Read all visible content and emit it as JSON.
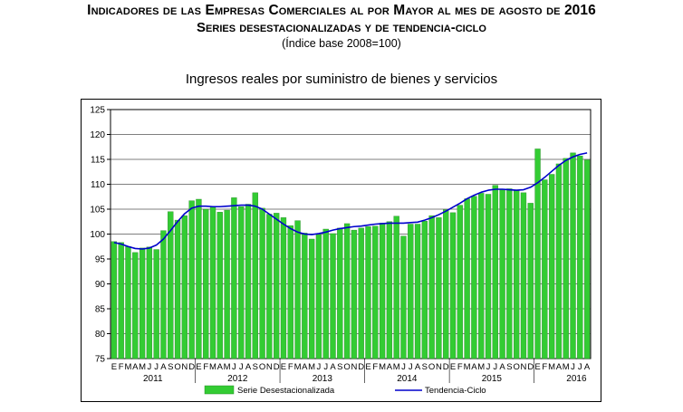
{
  "header": {
    "title": "Indicadores de las Empresas Comerciales al por Mayor al mes de agosto de 2016",
    "subtitle": "Series desestacionalizadas y de tendencia-ciclo",
    "note": "(Índice base 2008=100)"
  },
  "chart_data": {
    "type": "bar",
    "title": "Ingresos reales por suministro de bienes y servicios",
    "ylim": [
      75,
      125
    ],
    "yticks": [
      "75",
      "80",
      "85",
      "90",
      "95",
      "100",
      "105",
      "110",
      "115",
      "120",
      "125"
    ],
    "month_labels": [
      "E",
      "F",
      "M",
      "A",
      "M",
      "J",
      "J",
      "A",
      "S",
      "O",
      "N",
      "D",
      "E",
      "F",
      "M",
      "A",
      "M",
      "J",
      "J",
      "A",
      "S",
      "O",
      "N",
      "D",
      "E",
      "F",
      "M",
      "A",
      "M",
      "J",
      "J",
      "A",
      "S",
      "O",
      "N",
      "D",
      "E",
      "F",
      "M",
      "A",
      "M",
      "J",
      "J",
      "A",
      "S",
      "O",
      "N",
      "D",
      "E",
      "F",
      "M",
      "A",
      "M",
      "J",
      "J",
      "A",
      "S",
      "O",
      "N",
      "D",
      "E",
      "F",
      "M",
      "A",
      "M",
      "J",
      "J",
      "A"
    ],
    "years": [
      {
        "label": "2011",
        "start": 0,
        "months": 12
      },
      {
        "label": "2012",
        "start": 12,
        "months": 12
      },
      {
        "label": "2013",
        "start": 24,
        "months": 12
      },
      {
        "label": "2014",
        "start": 36,
        "months": 12
      },
      {
        "label": "2015",
        "start": 48,
        "months": 12
      },
      {
        "label": "2016",
        "start": 60,
        "months": 8
      }
    ],
    "grid": true,
    "legend_position": "bottom",
    "series": [
      {
        "name": "Serie Desestacionalizada",
        "kind": "bar",
        "color": "#33cc33",
        "values": [
          98.5,
          98.3,
          97.5,
          96.3,
          97.2,
          97.4,
          96.9,
          100.7,
          104.5,
          102.8,
          103.7,
          106.7,
          107.0,
          105.0,
          105.5,
          104.4,
          104.8,
          107.3,
          105.5,
          106.0,
          108.3,
          105.2,
          104.0,
          104.2,
          103.3,
          101.7,
          102.7,
          100.2,
          99.0,
          99.9,
          101.0,
          100.1,
          101.2,
          102.1,
          100.8,
          101.2,
          101.5,
          101.6,
          102.2,
          102.5,
          103.6,
          99.6,
          102.0,
          102.0,
          102.6,
          103.7,
          103.3,
          104.9,
          104.3,
          105.8,
          107.1,
          107.6,
          108.2,
          108.0,
          109.8,
          108.9,
          109.1,
          108.7,
          108.3,
          106.2,
          117.1,
          110.9,
          112.0,
          114.1,
          115.2,
          116.3,
          115.7,
          114.9
        ]
      },
      {
        "name": "Tendencia-Ciclo",
        "kind": "line",
        "color": "#0000cc",
        "values": [
          98.3,
          98.0,
          97.5,
          97.1,
          97.0,
          97.2,
          97.8,
          99.0,
          100.7,
          102.5,
          104.1,
          105.2,
          105.6,
          105.6,
          105.5,
          105.5,
          105.6,
          105.7,
          105.8,
          105.8,
          105.6,
          105.0,
          104.0,
          103.0,
          102.0,
          101.1,
          100.4,
          100.0,
          99.9,
          100.1,
          100.4,
          100.8,
          101.1,
          101.3,
          101.5,
          101.6,
          101.8,
          102.0,
          102.1,
          102.2,
          102.2,
          102.2,
          102.3,
          102.4,
          102.8,
          103.3,
          103.9,
          104.6,
          105.4,
          106.2,
          107.1,
          107.8,
          108.4,
          108.8,
          109.0,
          109.0,
          108.9,
          108.8,
          108.9,
          109.4,
          110.3,
          111.4,
          112.6,
          113.8,
          114.8,
          115.5,
          116.0,
          116.3
        ]
      }
    ]
  }
}
